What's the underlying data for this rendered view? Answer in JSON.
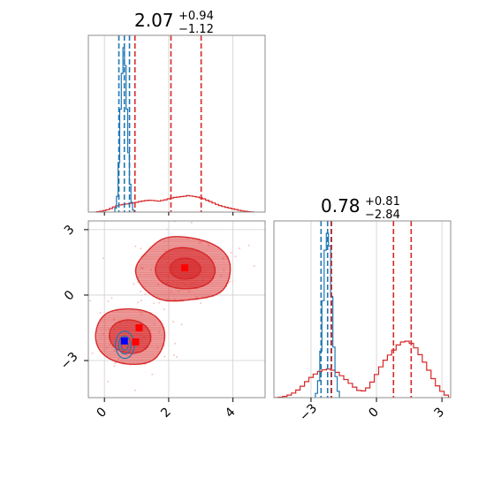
{
  "chart_data": {
    "type": "corner",
    "parameters": [
      {
        "title": {
          "value": "2.07",
          "plus": "+0.94",
          "minus": "−1.12"
        },
        "range": [
          -0.5,
          5.0
        ],
        "ticks": [
          0,
          2,
          4
        ],
        "tick_labels": [
          "0",
          "2",
          "4"
        ]
      },
      {
        "title": {
          "value": "0.78",
          "plus": "+0.81",
          "minus": "−2.84"
        },
        "range": [
          -4.7,
          3.4
        ],
        "ticks": [
          -3,
          0,
          3
        ],
        "tick_labels": [
          "−3",
          "0",
          "3"
        ]
      }
    ],
    "series": [
      {
        "color": "#d62728",
        "quantile_lines": {
          "p1": [
            0.95,
            2.07,
            3.01
          ],
          "p2": [
            -2.06,
            0.78,
            1.59
          ]
        },
        "hist_p1": {
          "x": [
            -0.2,
            -0.1,
            0.0,
            0.1,
            0.2,
            0.3,
            0.4,
            0.5,
            0.6,
            0.7,
            0.8,
            0.9,
            1.0,
            1.1,
            1.2,
            1.3,
            1.4,
            1.5,
            1.6,
            1.7,
            1.8,
            1.9,
            2.0,
            2.1,
            2.2,
            2.3,
            2.4,
            2.5,
            2.6,
            2.7,
            2.8,
            2.9,
            3.0,
            3.1,
            3.2,
            3.3,
            3.4,
            3.5,
            3.6,
            3.7,
            3.8,
            3.9,
            4.0,
            4.1,
            4.2,
            4.3,
            4.4,
            4.5,
            4.6
          ],
          "y": [
            0.2,
            0.4,
            0.7,
            1.2,
            1.8,
            2.6,
            3.2,
            3.6,
            3.9,
            4.1,
            4.4,
            4.6,
            4.9,
            5.3,
            5.6,
            5.8,
            6.0,
            5.9,
            5.7,
            5.5,
            5.9,
            6.2,
            6.7,
            7.1,
            7.4,
            7.6,
            7.8,
            8.0,
            8.3,
            8.1,
            7.9,
            7.6,
            7.2,
            6.7,
            6.0,
            5.3,
            4.6,
            3.9,
            3.3,
            2.8,
            2.4,
            2.0,
            1.6,
            1.3,
            0.9,
            0.6,
            0.4,
            0.2,
            0.1
          ]
        },
        "hist_p2": {
          "x": [
            -4.6,
            -4.4,
            -4.2,
            -4.0,
            -3.8,
            -3.6,
            -3.4,
            -3.2,
            -3.0,
            -2.8,
            -2.6,
            -2.4,
            -2.2,
            -2.0,
            -1.8,
            -1.6,
            -1.4,
            -1.2,
            -1.0,
            -0.8,
            -0.6,
            -0.4,
            -0.2,
            0.0,
            0.2,
            0.4,
            0.6,
            0.8,
            1.0,
            1.2,
            1.4,
            1.6,
            1.8,
            2.0,
            2.2,
            2.4,
            2.6,
            2.8,
            3.0,
            3.2
          ],
          "y": [
            0.0,
            0.2,
            0.6,
            1.2,
            2.2,
            3.6,
            5.4,
            7.6,
            9.6,
            11.2,
            12.4,
            13.2,
            13.6,
            13.0,
            12.0,
            10.4,
            8.6,
            6.8,
            5.0,
            3.4,
            3.2,
            4.6,
            7.4,
            11.0,
            14.6,
            17.8,
            20.2,
            22.6,
            25.0,
            26.4,
            26.8,
            25.8,
            23.6,
            20.4,
            16.8,
            13.0,
            9.0,
            5.6,
            3.0,
            1.2
          ]
        },
        "modes_2d": [
          {
            "mu": [
              2.5,
              1.2
            ],
            "sigma": [
              0.75,
              0.75
            ],
            "weight": 0.55
          },
          {
            "mu": [
              0.8,
              -1.9
            ],
            "sigma": [
              0.6,
              0.7
            ],
            "weight": 0.45
          }
        ],
        "markers": [
          [
            2.5,
            1.25
          ],
          [
            1.08,
            -1.5
          ],
          [
            0.97,
            -2.15
          ]
        ]
      },
      {
        "color": "#1f77b4",
        "quantile_lines": {
          "p1": [
            0.45,
            0.62,
            0.78
          ],
          "p2": [
            -2.54,
            -2.24,
            -2.08
          ]
        },
        "hist_p1": {
          "x": [
            0.35,
            0.4,
            0.45,
            0.5,
            0.55,
            0.6,
            0.65,
            0.7,
            0.75,
            0.8,
            0.85,
            0.9
          ],
          "y": [
            2,
            8,
            25,
            52,
            70,
            83,
            74,
            52,
            30,
            14,
            5,
            1
          ]
        },
        "hist_p2": {
          "x": [
            -2.75,
            -2.65,
            -2.55,
            -2.45,
            -2.35,
            -2.25,
            -2.15,
            -2.05,
            -1.95,
            -1.85,
            -1.75
          ],
          "y": [
            2,
            8,
            22,
            46,
            70,
            78,
            72,
            48,
            24,
            10,
            3
          ]
        },
        "modes_2d": [
          {
            "mu": [
              0.63,
              -2.3
            ],
            "sigma": [
              0.14,
              0.3
            ],
            "weight": 1.0
          }
        ],
        "markers": [
          [
            0.62,
            -2.1
          ]
        ]
      }
    ],
    "truth_marker": {
      "p1": 0.62,
      "p2": -2.1,
      "color": "#0000ff"
    },
    "grid": true
  }
}
